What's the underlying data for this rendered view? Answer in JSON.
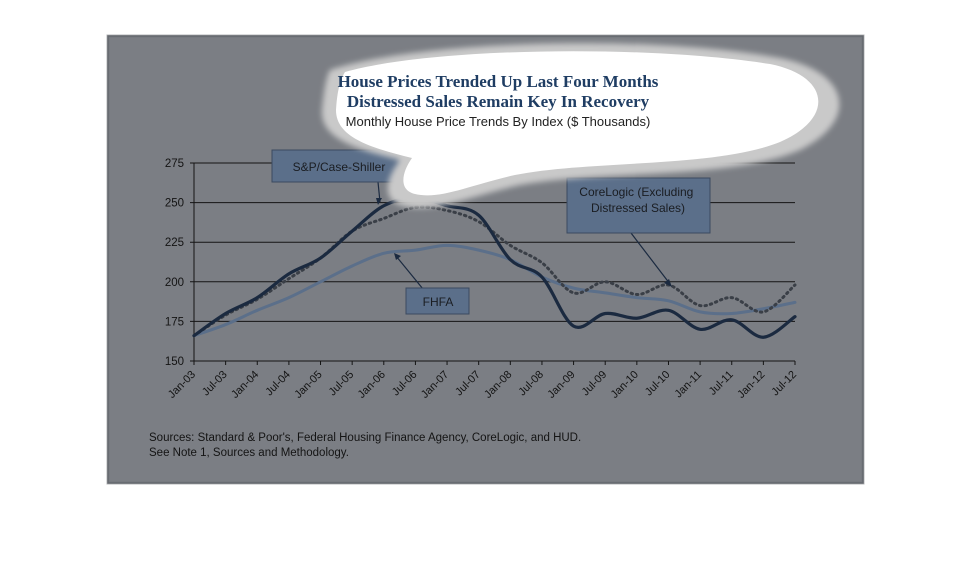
{
  "chart_data": {
    "type": "line",
    "title": "House Prices Trended Up Last Four Months",
    "subtitle": "Distressed Sales Remain Key In Recovery",
    "caption": "Monthly House Price Trends By Index ($ Thousands)",
    "xlabel": "",
    "ylabel": "",
    "ylim": [
      150,
      275
    ],
    "yticks": [
      150,
      175,
      200,
      225,
      250,
      275
    ],
    "grid": true,
    "x_tick_labels": [
      "Jan-03",
      "Jul-03",
      "Jan-04",
      "Jul-04",
      "Jan-05",
      "Jul-05",
      "Jan-06",
      "Jul-06",
      "Jan-07",
      "Jul-07",
      "Jan-08",
      "Jul-08",
      "Jan-09",
      "Jul-09",
      "Jan-10",
      "Jul-10",
      "Jan-11",
      "Jul-11",
      "Jan-12",
      "Jul-12"
    ],
    "x": [
      "Jan-03",
      "Jul-03",
      "Jan-04",
      "Jul-04",
      "Jan-05",
      "Jul-05",
      "Jan-06",
      "Jul-06",
      "Jan-07",
      "Jul-07",
      "Jan-08",
      "Jul-08",
      "Jan-09",
      "Jul-09",
      "Jan-10",
      "Jul-10",
      "Jan-11",
      "Jul-11",
      "Jan-12",
      "Jul-12"
    ],
    "series": [
      {
        "name": "S&P/Case-Shiller",
        "color": "#1b2a40",
        "style": "solid",
        "values": [
          166,
          180,
          190,
          205,
          215,
          232,
          248,
          253,
          248,
          242,
          214,
          203,
          172,
          180,
          177,
          182,
          170,
          176,
          165,
          178
        ]
      },
      {
        "name": "FHFA",
        "color": "#5b6f8a",
        "style": "solid",
        "values": [
          166,
          173,
          182,
          190,
          200,
          210,
          218,
          220,
          223,
          220,
          214,
          203,
          196,
          193,
          190,
          188,
          181,
          180,
          183,
          187
        ]
      },
      {
        "name": "CoreLogic (Excluding Distressed Sales)",
        "color": "#3a3f47",
        "style": "dotted",
        "values": [
          166,
          179,
          189,
          202,
          215,
          232,
          240,
          247,
          245,
          238,
          223,
          212,
          193,
          200,
          192,
          198,
          185,
          190,
          181,
          198
        ]
      }
    ],
    "annotations": [
      "S&P/Case-Shiller",
      "CoreLogic (Excluding\nDistressed Sales)",
      "FHFA"
    ]
  },
  "sources": {
    "line1": "Sources:  Standard & Poor's, Federal Housing Finance Agency, CoreLogic, and HUD.",
    "line2": "See Note 1, Sources and Methodology."
  },
  "colors": {
    "panel": "#7b7e84",
    "panel_border": "#5e6166",
    "title": "#1f3d63",
    "label_box": "#5b6f8a"
  }
}
